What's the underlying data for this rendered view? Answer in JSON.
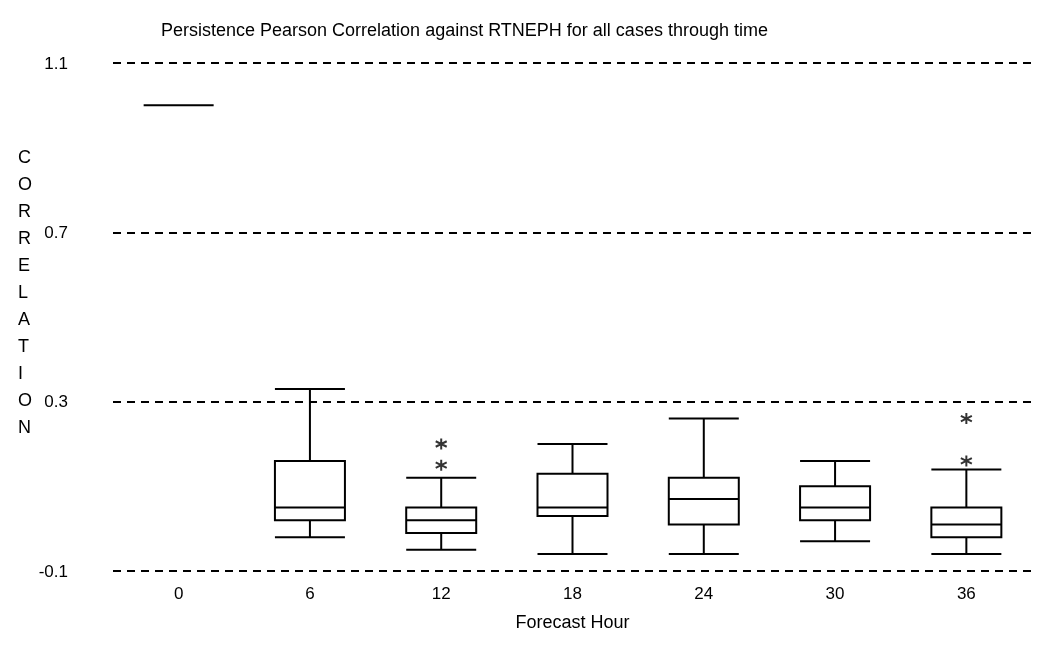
{
  "chart_data": {
    "type": "box",
    "title": "Persistence Pearson Correlation against RTNEPH for all cases through time",
    "xlabel": "Forecast Hour",
    "ylabel": "CORRELATION",
    "categories": [
      "0",
      "6",
      "12",
      "18",
      "24",
      "30",
      "36"
    ],
    "boxes": [
      {
        "low": 1.0,
        "q1": 1.0,
        "median": 1.0,
        "q3": 1.0,
        "high": 1.0
      },
      {
        "low": -0.02,
        "q1": 0.02,
        "median": 0.05,
        "q3": 0.16,
        "high": 0.33
      },
      {
        "low": -0.05,
        "q1": -0.01,
        "median": 0.02,
        "q3": 0.05,
        "high": 0.12,
        "outliers": [
          0.15,
          0.2
        ]
      },
      {
        "low": -0.06,
        "q1": 0.03,
        "median": 0.05,
        "q3": 0.13,
        "high": 0.2
      },
      {
        "low": -0.06,
        "q1": 0.01,
        "median": 0.07,
        "q3": 0.12,
        "high": 0.26
      },
      {
        "low": -0.03,
        "q1": 0.02,
        "median": 0.05,
        "q3": 0.1,
        "high": 0.16
      },
      {
        "low": -0.06,
        "q1": -0.02,
        "median": 0.01,
        "q3": 0.05,
        "high": 0.14,
        "outliers": [
          0.16,
          0.26
        ]
      }
    ],
    "ylim": [
      -0.1,
      1.1
    ],
    "yticks": [
      -0.1,
      0.3,
      0.7,
      1.1
    ],
    "grid": "y",
    "marker": "star"
  }
}
